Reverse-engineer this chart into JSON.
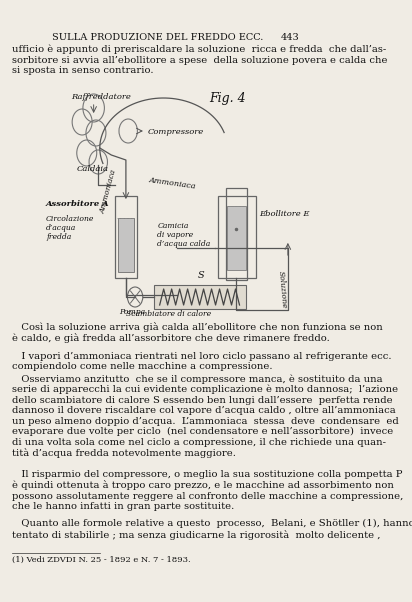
{
  "bg_color": "#f0ece4",
  "header_title": "SULLA PRODUZIONE DEL FREDDO ECC.",
  "header_page": "443",
  "para1": "ufficio è appunto di preriscaldare la soluzione  ricca e fredda  che dall’as-\nsorbitore si avvia all’ebollitore a spese  della soluzione povera e calda che\nsi sposta in senso contrario.",
  "fig_label": "Fig. 4",
  "label_raffreddatore": "Raffreddatore",
  "label_compressore": "Compressore",
  "label_caldaia": "Caldaia",
  "label_ammoniaca_h": "Ammoniaca",
  "label_ammoniaca_v": "Ammoniaca",
  "label_assorbitore": "Assorbitore A",
  "label_circolazione": "Circolazione\nd’acqua\nfredda",
  "label_camicia": "Camicia\ndi vapore\nd’acqua calda",
  "label_ebollitore": "Ebollitore E",
  "label_s": "S",
  "label_pompa": "Pompa",
  "label_scambiatore": "Scambiatore di calore",
  "label_soluzione": "Soluzione",
  "para2": "   Così la soluzione arriva già calda all’ebollitore che non funziona se non\nè caldo, e già fredda all’assorbitore che deve rimanere freddo.",
  "para3": "   I vapori d’ammoniaca rientrati nel loro ciclo passano al refrigerante ecc.\ncompiendolo come nelle macchine a compressione.",
  "para4": "   Osserviamo anzitutto  che se il compressore manca, è sostituito da una\nserie di apparecchi la cui evidente complicazione è molto dannosa;  l’azione\ndello scambiatore di calore S essendo ben lungi dall’essere  perfetta rende\ndannoso il dovere riscaldare col vapore d’acqua caldo , oltre all’ammoniaca\nun peso almeno doppio d’acqua.  L’ammoniaca  stessa  deve  condensare  ed\nevaporare due volte per ciclo  (nel condensatore e nell’assorbitore)  invece\ndi una volta sola come nel ciclo a compressione, il che richiede una quan-\ntità d’acqua fredda notevolmente maggiore.",
  "para5": "   Il risparmio del compressore, o meglio la sua sostituzione colla pompetta P\nè quindi ottenuta à troppo caro prezzo, e le macchine ad assorbimento non\npossono assolutamente reggere al confronto delle macchine a compressione,\nche le hanno infatti in gran parte sostituite.",
  "para6": "   Quanto alle formole relative a questo  processo,  Belani, e Shötller (1), hanno\ntentato di stabilirle ; ma senza giudicarne la rigorosità  molto delicente ,",
  "footnote": "(1) Vedi ZDVDI N. 25 - 1892 e N. 7 - 1893."
}
